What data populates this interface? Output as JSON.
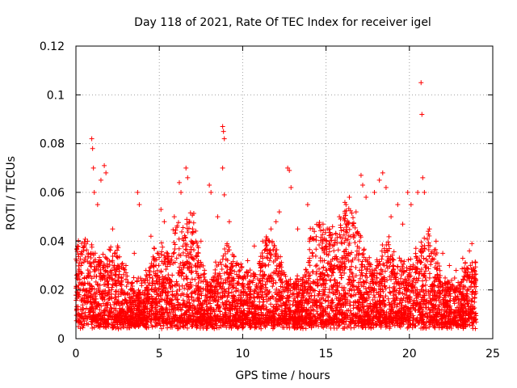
{
  "chart_data": {
    "type": "scatter",
    "title": "Day 118 of 2021, Rate Of TEC Index for receiver igel",
    "xlabel": "GPS time / hours",
    "ylabel": "ROTI / TECUs",
    "xlim": [
      0,
      25
    ],
    "ylim": [
      0,
      0.12
    ],
    "xticks": [
      0,
      5,
      10,
      15,
      20,
      25
    ],
    "xtick_labels": [
      "0",
      "5",
      "10",
      "15",
      "20",
      "25"
    ],
    "yticks": [
      0,
      0.02,
      0.04,
      0.06,
      0.08,
      0.1,
      0.12
    ],
    "ytick_labels": [
      "0",
      "0.02",
      "0.04",
      "0.06",
      "0.08",
      "0.1",
      "0.12"
    ],
    "grid": true,
    "marker": "+",
    "color": "#ff0000",
    "series": [
      {
        "name": "ROTI",
        "sample_points": [
          [
            0.05,
            0.012
          ],
          [
            0.2,
            0.018
          ],
          [
            0.3,
            0.03
          ],
          [
            0.5,
            0.025
          ],
          [
            0.7,
            0.04
          ],
          [
            0.95,
            0.082
          ],
          [
            1.0,
            0.078
          ],
          [
            1.05,
            0.07
          ],
          [
            1.1,
            0.06
          ],
          [
            1.3,
            0.055
          ],
          [
            1.5,
            0.065
          ],
          [
            1.7,
            0.071
          ],
          [
            1.8,
            0.068
          ],
          [
            2.2,
            0.045
          ],
          [
            2.5,
            0.038
          ],
          [
            3.0,
            0.03
          ],
          [
            3.5,
            0.035
          ],
          [
            3.7,
            0.06
          ],
          [
            3.8,
            0.055
          ],
          [
            4.2,
            0.028
          ],
          [
            4.5,
            0.042
          ],
          [
            4.8,
            0.03
          ],
          [
            5.1,
            0.053
          ],
          [
            5.3,
            0.048
          ],
          [
            5.5,
            0.035
          ],
          [
            5.9,
            0.05
          ],
          [
            6.2,
            0.064
          ],
          [
            6.3,
            0.06
          ],
          [
            6.6,
            0.07
          ],
          [
            6.7,
            0.066
          ],
          [
            7.0,
            0.045
          ],
          [
            7.5,
            0.04
          ],
          [
            8.0,
            0.063
          ],
          [
            8.1,
            0.06
          ],
          [
            8.5,
            0.05
          ],
          [
            8.8,
            0.087
          ],
          [
            8.85,
            0.085
          ],
          [
            8.9,
            0.082
          ],
          [
            8.8,
            0.07
          ],
          [
            8.9,
            0.059
          ],
          [
            9.2,
            0.048
          ],
          [
            9.6,
            0.03
          ],
          [
            10.0,
            0.025
          ],
          [
            10.3,
            0.032
          ],
          [
            10.7,
            0.038
          ],
          [
            11.2,
            0.04
          ],
          [
            11.7,
            0.045
          ],
          [
            12.0,
            0.048
          ],
          [
            12.2,
            0.052
          ],
          [
            12.7,
            0.07
          ],
          [
            12.8,
            0.069
          ],
          [
            12.9,
            0.062
          ],
          [
            13.3,
            0.045
          ],
          [
            13.9,
            0.055
          ],
          [
            14.3,
            0.044
          ],
          [
            14.8,
            0.04
          ],
          [
            15.2,
            0.045
          ],
          [
            15.8,
            0.05
          ],
          [
            16.2,
            0.055
          ],
          [
            16.4,
            0.058
          ],
          [
            16.8,
            0.052
          ],
          [
            17.1,
            0.067
          ],
          [
            17.2,
            0.063
          ],
          [
            17.4,
            0.058
          ],
          [
            17.9,
            0.06
          ],
          [
            18.2,
            0.065
          ],
          [
            18.4,
            0.068
          ],
          [
            18.6,
            0.062
          ],
          [
            18.9,
            0.05
          ],
          [
            19.3,
            0.055
          ],
          [
            19.6,
            0.047
          ],
          [
            19.9,
            0.06
          ],
          [
            20.1,
            0.055
          ],
          [
            20.5,
            0.06
          ],
          [
            20.7,
            0.105
          ],
          [
            20.75,
            0.092
          ],
          [
            20.8,
            0.066
          ],
          [
            20.9,
            0.06
          ],
          [
            21.2,
            0.045
          ],
          [
            21.6,
            0.04
          ],
          [
            22.0,
            0.035
          ],
          [
            22.4,
            0.03
          ],
          [
            22.8,
            0.028
          ],
          [
            23.2,
            0.033
          ],
          [
            23.6,
            0.036
          ],
          [
            23.75,
            0.039
          ],
          [
            23.9,
            0.015
          ]
        ]
      }
    ]
  }
}
